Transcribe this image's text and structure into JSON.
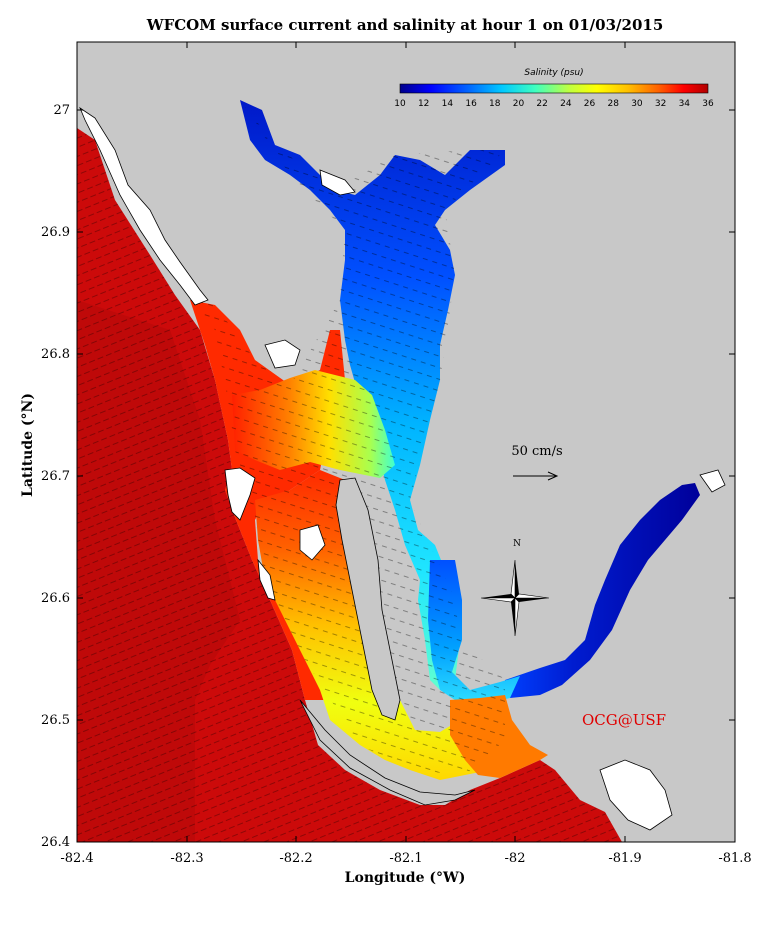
{
  "title": "WFCOM surface current and salinity at hour 1 on 01/03/2015",
  "x_axis": {
    "label": "Longitude (°W)",
    "ticks": [
      "-82.4",
      "-82.3",
      "-82.2",
      "-82.1",
      "-82",
      "-81.9",
      "-81.8"
    ]
  },
  "y_axis": {
    "label": "Latitude (°N)",
    "ticks": [
      "26.4",
      "26.5",
      "26.6",
      "26.7",
      "26.8",
      "26.9",
      "27"
    ]
  },
  "colorbar": {
    "title": "Salinity (psu)",
    "ticks": [
      "10",
      "12",
      "14",
      "16",
      "18",
      "20",
      "22",
      "24",
      "26",
      "28",
      "30",
      "32",
      "34",
      "36"
    ],
    "colors": [
      "#00008b",
      "#0000ff",
      "#0064ff",
      "#00c8ff",
      "#40ffbf",
      "#c0ff40",
      "#ffff00",
      "#ffc000",
      "#ff6000",
      "#ff0000",
      "#b00000"
    ]
  },
  "scale_arrow": {
    "label": "50 cm/s"
  },
  "north_arrow": {
    "label": "N"
  },
  "credit": "OCG@USF",
  "colors": {
    "land": "#c8c8c8",
    "gulf": "#cc0a0a",
    "island": "#ffffff"
  }
}
